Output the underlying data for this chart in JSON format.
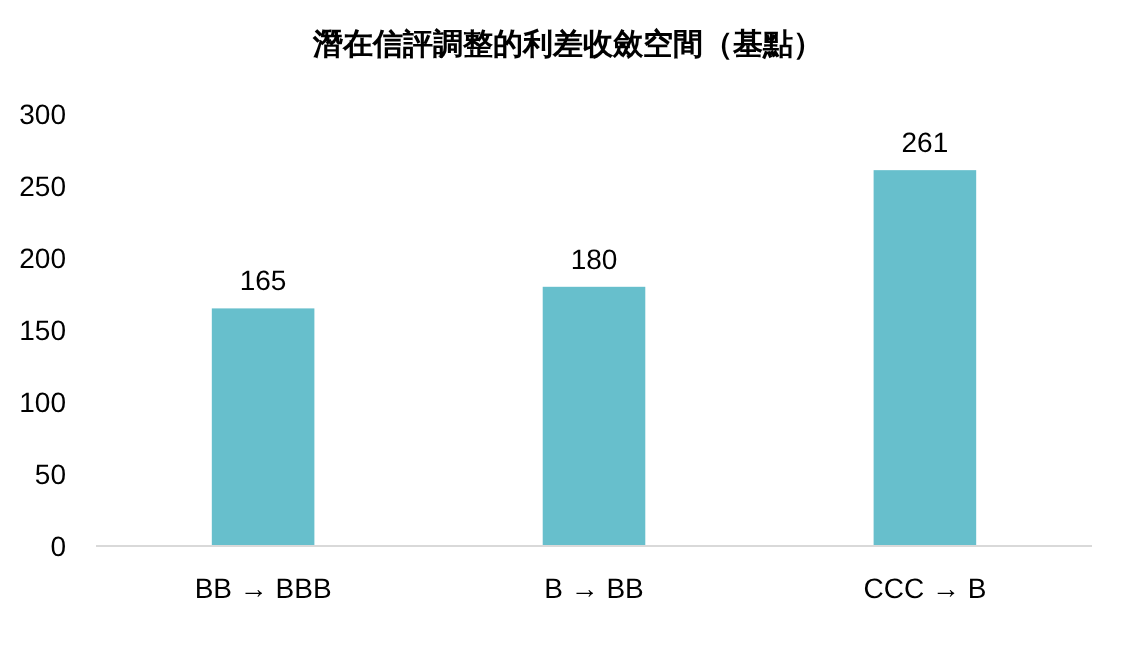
{
  "chart_data": {
    "type": "bar",
    "title": "潛在信評調整的利差收斂空間（基點）",
    "categories": [
      "BB → BBB",
      "B → BB",
      "CCC → B"
    ],
    "values": [
      165,
      180,
      261
    ],
    "color": "#67bfcc",
    "ylim": [
      0,
      300
    ],
    "yticks": [
      0,
      50,
      100,
      150,
      200,
      250,
      300
    ],
    "grid": false,
    "data_labels": true
  }
}
